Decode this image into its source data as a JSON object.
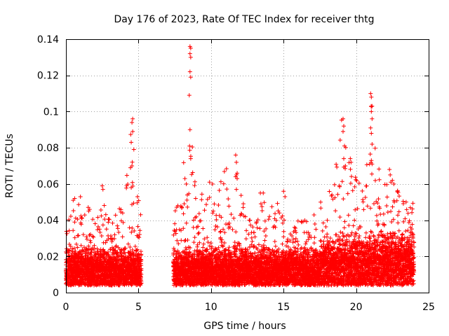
{
  "chart_data": {
    "type": "scatter",
    "title": "Day 176 of 2023, Rate Of TEC Index for receiver thtg",
    "xlabel": "GPS time / hours",
    "ylabel": "ROTI / TECUs",
    "xlim": [
      0,
      25
    ],
    "ylim": [
      0,
      0.14
    ],
    "xticks": [
      "0",
      "5",
      "10",
      "15",
      "20",
      "25"
    ],
    "yticks": [
      "0",
      "0.02",
      "0.04",
      "0.06",
      "0.08",
      "0.1",
      "0.12",
      "0.14"
    ],
    "grid": true,
    "marker": "+",
    "color": "#ff0000",
    "data_gap": [
      5.2,
      7.4
    ],
    "envelope_hours": [
      0,
      0.5,
      1,
      1.5,
      2,
      2.5,
      3,
      3.5,
      4,
      4.5,
      5,
      5.2,
      7.4,
      8,
      8.5,
      9,
      9.5,
      10,
      10.5,
      11,
      11.5,
      12,
      12.5,
      13,
      13.5,
      14,
      14.5,
      15,
      15.5,
      16,
      16.5,
      17,
      17.5,
      18,
      18.5,
      19,
      19.5,
      20,
      20.5,
      21,
      21.5,
      22,
      22.5,
      23,
      23.5,
      24
    ],
    "envelope_roti_max": [
      0.033,
      0.052,
      0.053,
      0.048,
      0.042,
      0.059,
      0.041,
      0.048,
      0.05,
      0.096,
      0.054,
      0.05,
      0.04,
      0.063,
      0.136,
      0.044,
      0.061,
      0.052,
      0.054,
      0.076,
      0.047,
      0.055,
      0.048,
      0.037,
      0.055,
      0.042,
      0.056,
      0.045,
      0.032,
      0.04,
      0.04,
      0.043,
      0.05,
      0.055,
      0.07,
      0.096,
      0.074,
      0.065,
      0.058,
      0.11,
      0.07,
      0.067,
      0.06,
      0.055,
      0.055,
      0.052
    ],
    "points": [
      [
        4.6,
        0.096
      ],
      [
        4.55,
        0.094
      ],
      [
        4.6,
        0.089
      ],
      [
        4.5,
        0.083
      ],
      [
        4.55,
        0.07
      ],
      [
        4.45,
        0.069
      ],
      [
        4.5,
        0.058
      ],
      [
        8.55,
        0.136
      ],
      [
        8.6,
        0.135
      ],
      [
        8.55,
        0.132
      ],
      [
        8.6,
        0.13
      ],
      [
        8.55,
        0.122
      ],
      [
        8.6,
        0.119
      ],
      [
        8.5,
        0.109
      ],
      [
        8.55,
        0.09
      ],
      [
        8.6,
        0.074
      ],
      [
        11.7,
        0.076
      ],
      [
        11.75,
        0.072
      ],
      [
        11.8,
        0.066
      ],
      [
        11.75,
        0.065
      ],
      [
        11.7,
        0.064
      ],
      [
        11.8,
        0.063
      ],
      [
        11.75,
        0.057
      ],
      [
        19.1,
        0.096
      ],
      [
        19.15,
        0.092
      ],
      [
        19.1,
        0.089
      ],
      [
        19.2,
        0.081
      ],
      [
        19.15,
        0.074
      ],
      [
        19.6,
        0.074
      ],
      [
        19.65,
        0.072
      ],
      [
        21.0,
        0.11
      ],
      [
        21.05,
        0.108
      ],
      [
        21.1,
        0.103
      ],
      [
        21.05,
        0.1
      ],
      [
        21.1,
        0.096
      ],
      [
        21.0,
        0.091
      ],
      [
        21.05,
        0.088
      ],
      [
        21.1,
        0.082
      ],
      [
        21.05,
        0.073
      ],
      [
        21.1,
        0.071
      ],
      [
        22.3,
        0.068
      ],
      [
        22.35,
        0.065
      ],
      [
        22.5,
        0.062
      ],
      [
        22.4,
        0.061
      ],
      [
        22.6,
        0.06
      ],
      [
        8.2,
        0.063
      ],
      [
        8.3,
        0.06
      ],
      [
        9.9,
        0.061
      ],
      [
        10.1,
        0.06
      ],
      [
        13.4,
        0.055
      ],
      [
        13.6,
        0.055
      ],
      [
        2.5,
        0.059
      ],
      [
        2.55,
        0.057
      ],
      [
        1.0,
        0.053
      ],
      [
        0.6,
        0.052
      ],
      [
        0.5,
        0.051
      ],
      [
        15.0,
        0.056
      ],
      [
        15.1,
        0.053
      ]
    ]
  }
}
